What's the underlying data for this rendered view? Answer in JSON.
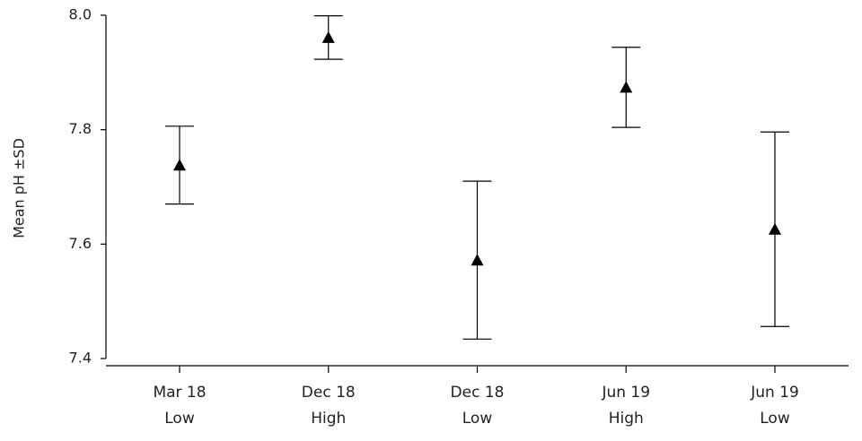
{
  "chart_data": {
    "type": "errorbar",
    "y_label": "Mean pH ±SD",
    "categories": [
      [
        "Mar 18",
        "Low"
      ],
      [
        "Dec 18",
        "High"
      ],
      [
        "Dec 18",
        "Low"
      ],
      [
        "Jun 19",
        "High"
      ],
      [
        "Jun 19",
        "Low"
      ]
    ],
    "values": [
      7.738,
      7.961,
      7.572,
      7.874,
      7.626
    ],
    "errors": [
      0.068,
      0.038,
      0.138,
      0.07,
      0.17
    ],
    "color": "#000000",
    "ylim": [
      7.4,
      8.0
    ],
    "yticks": [
      7.4,
      7.6,
      7.8,
      {
        "value": 8,
        "label": "8.0"
      }
    ]
  }
}
